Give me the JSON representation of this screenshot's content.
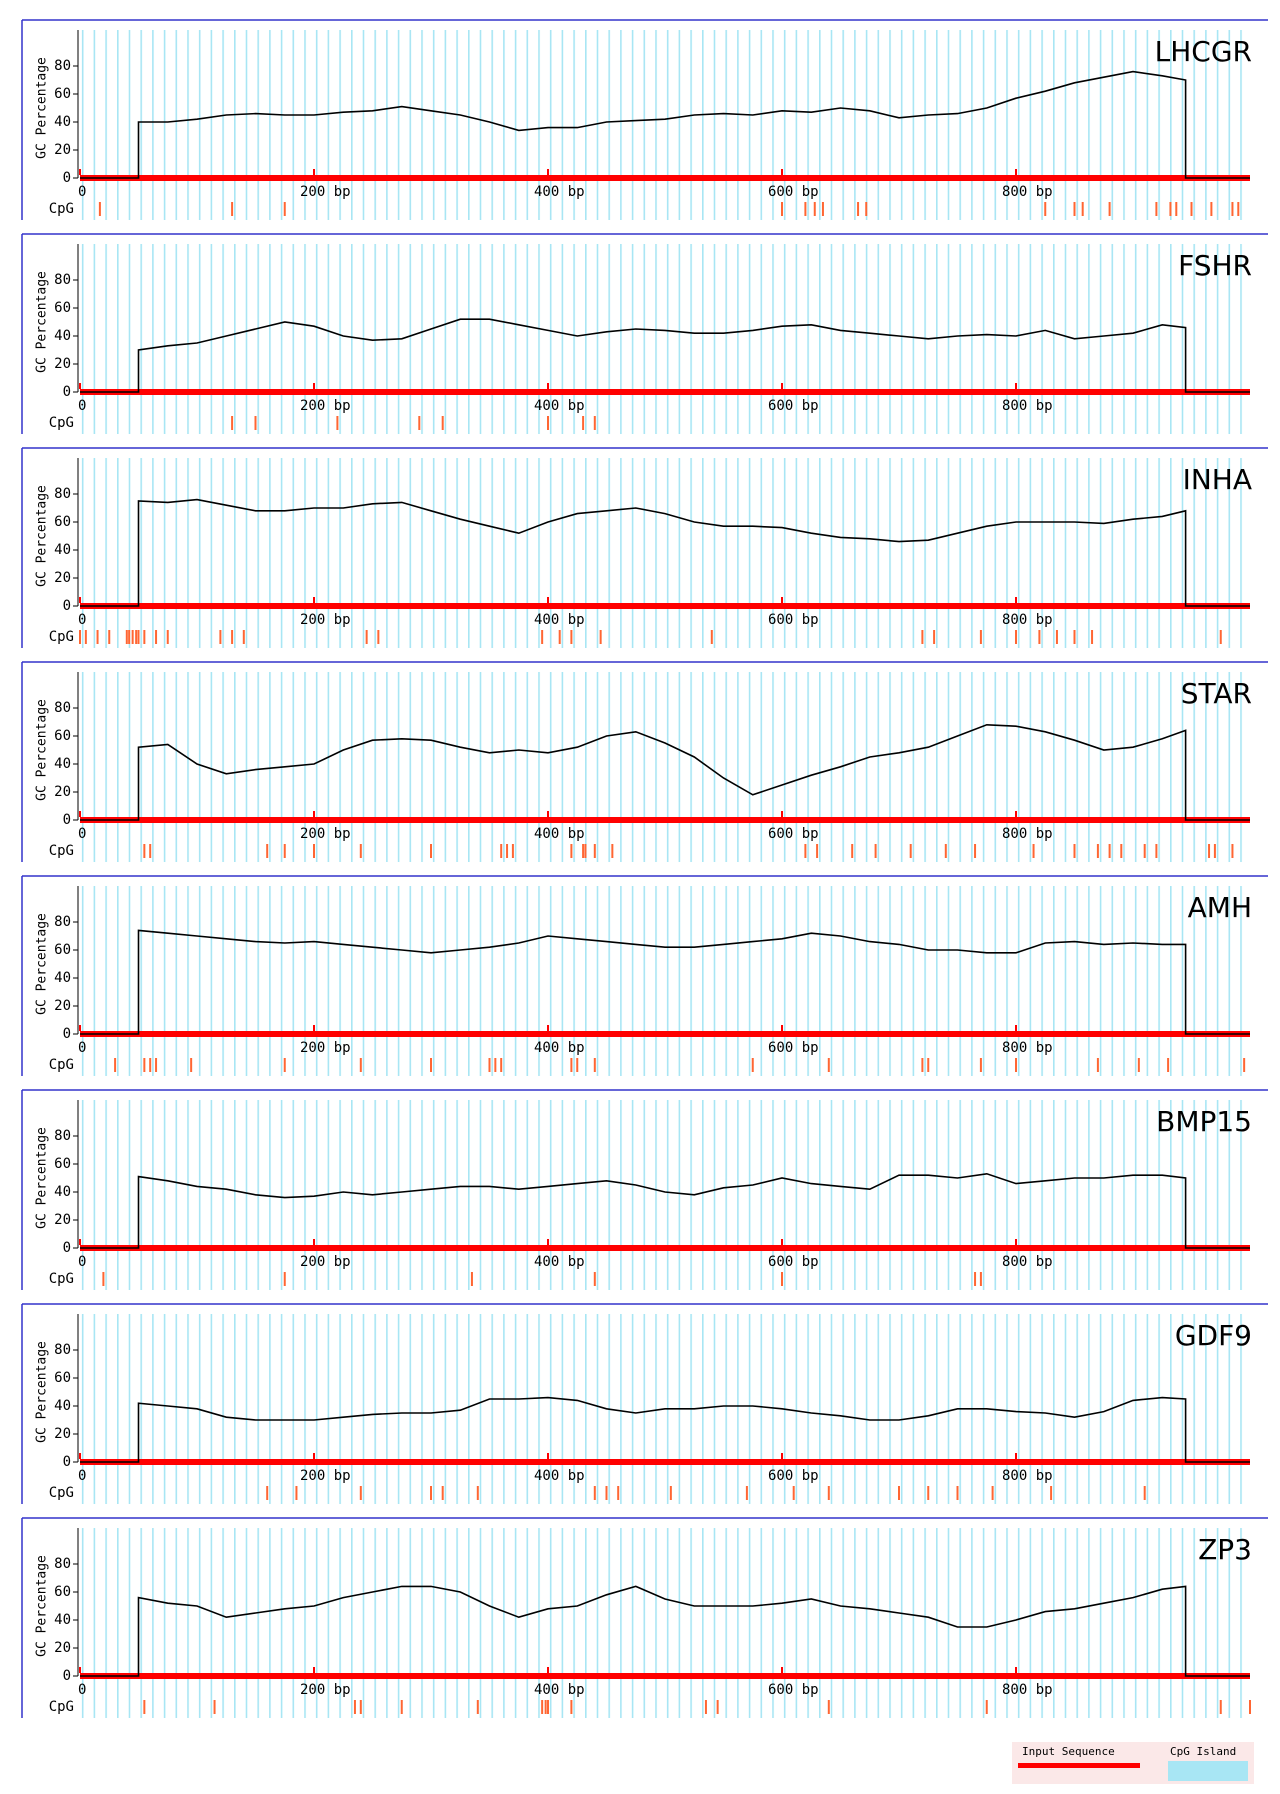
{
  "chart_data": [
    {
      "type": "line",
      "title": "LHCGR",
      "ylabel": "GC Percentage",
      "cpg_label": "CpG",
      "x": [
        0,
        50,
        50,
        75,
        100,
        125,
        150,
        175,
        200,
        225,
        250,
        275,
        300,
        325,
        350,
        375,
        400,
        425,
        450,
        475,
        500,
        525,
        550,
        575,
        600,
        625,
        650,
        675,
        700,
        725,
        750,
        775,
        800,
        825,
        850,
        875,
        900,
        925,
        945,
        945,
        1000
      ],
      "values": [
        0,
        0,
        40,
        40,
        42,
        45,
        46,
        45,
        45,
        47,
        48,
        51,
        48,
        45,
        40,
        34,
        36,
        36,
        40,
        41,
        42,
        45,
        46,
        45,
        48,
        47,
        50,
        48,
        43,
        45,
        46,
        50,
        57,
        62,
        68,
        72,
        76,
        73,
        70,
        0,
        0
      ],
      "cpg": [
        17,
        130,
        175,
        600,
        620,
        628,
        635,
        665,
        672,
        825,
        850,
        857,
        880,
        920,
        932,
        937,
        950,
        967,
        985,
        990
      ],
      "color": "#000000",
      "xlim": [
        0,
        1000
      ],
      "ylim": [
        0,
        100
      ],
      "yticks": [
        0,
        20,
        40,
        60,
        80
      ],
      "xticks": [
        0,
        {
          "value": 200,
          "label": "200  bp"
        },
        {
          "value": 400,
          "label": "400  bp"
        },
        {
          "value": 600,
          "label": "600  bp"
        },
        {
          "value": 800,
          "label": "800  bp"
        }
      ]
    },
    {
      "type": "line",
      "title": "FSHR",
      "ylabel": "GC Percentage",
      "cpg_label": "CpG",
      "x": [
        0,
        50,
        50,
        75,
        100,
        125,
        150,
        175,
        200,
        225,
        250,
        275,
        300,
        325,
        350,
        375,
        400,
        425,
        450,
        475,
        500,
        525,
        550,
        575,
        600,
        625,
        650,
        675,
        700,
        725,
        750,
        775,
        800,
        825,
        850,
        875,
        900,
        925,
        945,
        945,
        1000
      ],
      "values": [
        0,
        0,
        30,
        33,
        35,
        40,
        45,
        50,
        47,
        40,
        37,
        38,
        45,
        52,
        52,
        48,
        44,
        40,
        43,
        45,
        44,
        42,
        42,
        44,
        47,
        48,
        44,
        42,
        40,
        38,
        40,
        41,
        40,
        44,
        38,
        40,
        42,
        48,
        46,
        0,
        0
      ],
      "cpg": [
        130,
        150,
        220,
        290,
        310,
        400,
        430,
        440
      ],
      "color": "#000000",
      "xlim": [
        0,
        1000
      ],
      "ylim": [
        0,
        100
      ],
      "yticks": [
        0,
        20,
        40,
        60,
        80
      ],
      "xticks": [
        0,
        {
          "value": 200,
          "label": "200  bp"
        },
        {
          "value": 400,
          "label": "400  bp"
        },
        {
          "value": 600,
          "label": "600  bp"
        },
        {
          "value": 800,
          "label": "800  bp"
        }
      ]
    },
    {
      "type": "line",
      "title": "INHA",
      "ylabel": "GC Percentage",
      "cpg_label": "CpG",
      "x": [
        0,
        50,
        50,
        75,
        100,
        125,
        150,
        175,
        200,
        225,
        250,
        275,
        300,
        325,
        350,
        375,
        400,
        425,
        450,
        475,
        500,
        525,
        550,
        575,
        600,
        625,
        650,
        675,
        700,
        725,
        750,
        775,
        800,
        825,
        850,
        875,
        900,
        925,
        945,
        945,
        1000
      ],
      "values": [
        0,
        0,
        75,
        74,
        76,
        72,
        68,
        68,
        70,
        70,
        73,
        74,
        68,
        62,
        57,
        52,
        60,
        66,
        68,
        70,
        66,
        60,
        57,
        57,
        56,
        52,
        49,
        48,
        46,
        47,
        52,
        57,
        60,
        60,
        60,
        59,
        62,
        64,
        68,
        0,
        0
      ],
      "cpg": [
        0,
        5,
        15,
        25,
        40,
        42,
        45,
        48,
        50,
        55,
        65,
        75,
        120,
        130,
        140,
        245,
        255,
        395,
        410,
        420,
        445,
        540,
        720,
        730,
        770,
        800,
        820,
        835,
        850,
        865,
        975
      ],
      "color": "#000000",
      "xlim": [
        0,
        1000
      ],
      "ylim": [
        0,
        100
      ],
      "yticks": [
        0,
        20,
        40,
        60,
        80
      ],
      "xticks": [
        0,
        {
          "value": 200,
          "label": "200  bp"
        },
        {
          "value": 400,
          "label": "400  bp"
        },
        {
          "value": 600,
          "label": "600  bp"
        },
        {
          "value": 800,
          "label": "800  bp"
        }
      ]
    },
    {
      "type": "line",
      "title": "STAR",
      "ylabel": "GC Percentage",
      "cpg_label": "CpG",
      "x": [
        0,
        50,
        50,
        75,
        100,
        125,
        150,
        175,
        200,
        225,
        250,
        275,
        300,
        325,
        350,
        375,
        400,
        425,
        450,
        475,
        500,
        525,
        550,
        575,
        600,
        625,
        650,
        675,
        700,
        725,
        750,
        775,
        800,
        825,
        850,
        875,
        900,
        925,
        945,
        945,
        1000
      ],
      "values": [
        0,
        0,
        52,
        54,
        40,
        33,
        36,
        38,
        40,
        50,
        57,
        58,
        57,
        52,
        48,
        50,
        48,
        52,
        60,
        63,
        55,
        45,
        30,
        18,
        25,
        32,
        38,
        45,
        48,
        52,
        60,
        68,
        67,
        63,
        57,
        50,
        52,
        58,
        64,
        0,
        0
      ],
      "cpg": [
        55,
        60,
        160,
        175,
        200,
        240,
        300,
        360,
        365,
        370,
        420,
        430,
        432,
        440,
        455,
        620,
        630,
        660,
        680,
        710,
        740,
        765,
        815,
        850,
        870,
        880,
        890,
        910,
        920,
        965,
        970,
        985
      ],
      "color": "#000000",
      "xlim": [
        0,
        1000
      ],
      "ylim": [
        0,
        100
      ],
      "yticks": [
        0,
        20,
        40,
        60,
        80
      ],
      "xticks": [
        0,
        {
          "value": 200,
          "label": "200  bp"
        },
        {
          "value": 400,
          "label": "400  bp"
        },
        {
          "value": 600,
          "label": "600  bp"
        },
        {
          "value": 800,
          "label": "800  bp"
        }
      ]
    },
    {
      "type": "line",
      "title": "AMH",
      "ylabel": "GC Percentage",
      "cpg_label": "CpG",
      "x": [
        0,
        50,
        50,
        75,
        100,
        125,
        150,
        175,
        200,
        225,
        250,
        275,
        300,
        325,
        350,
        375,
        400,
        425,
        450,
        475,
        500,
        525,
        550,
        575,
        600,
        625,
        650,
        675,
        700,
        725,
        750,
        775,
        800,
        825,
        850,
        875,
        900,
        925,
        945,
        945,
        1000
      ],
      "values": [
        0,
        0,
        74,
        72,
        70,
        68,
        66,
        65,
        66,
        64,
        62,
        60,
        58,
        60,
        62,
        65,
        70,
        68,
        66,
        64,
        62,
        62,
        64,
        66,
        68,
        72,
        70,
        66,
        64,
        60,
        60,
        58,
        58,
        65,
        66,
        64,
        65,
        64,
        64,
        0,
        0
      ],
      "cpg": [
        30,
        55,
        60,
        65,
        95,
        175,
        240,
        300,
        350,
        355,
        360,
        420,
        425,
        440,
        575,
        640,
        720,
        725,
        770,
        800,
        870,
        905,
        930,
        995
      ],
      "color": "#000000",
      "xlim": [
        0,
        1000
      ],
      "ylim": [
        0,
        100
      ],
      "yticks": [
        0,
        20,
        40,
        60,
        80
      ],
      "xticks": [
        0,
        {
          "value": 200,
          "label": "200  bp"
        },
        {
          "value": 400,
          "label": "400  bp"
        },
        {
          "value": 600,
          "label": "600  bp"
        },
        {
          "value": 800,
          "label": "800  bp"
        }
      ]
    },
    {
      "type": "line",
      "title": "BMP15",
      "ylabel": "GC Percentage",
      "cpg_label": "CpG",
      "x": [
        0,
        50,
        50,
        75,
        100,
        125,
        150,
        175,
        200,
        225,
        250,
        275,
        300,
        325,
        350,
        375,
        400,
        425,
        450,
        475,
        500,
        525,
        550,
        575,
        600,
        625,
        650,
        675,
        700,
        725,
        750,
        775,
        800,
        825,
        850,
        875,
        900,
        925,
        945,
        945,
        1000
      ],
      "values": [
        0,
        0,
        51,
        48,
        44,
        42,
        38,
        36,
        37,
        40,
        38,
        40,
        42,
        44,
        44,
        42,
        44,
        46,
        48,
        45,
        40,
        38,
        43,
        45,
        50,
        46,
        44,
        42,
        52,
        52,
        50,
        53,
        46,
        48,
        50,
        50,
        52,
        52,
        50,
        0,
        0
      ],
      "cpg": [
        20,
        175,
        335,
        440,
        600,
        765,
        770
      ],
      "color": "#000000",
      "xlim": [
        0,
        1000
      ],
      "ylim": [
        0,
        100
      ],
      "yticks": [
        0,
        20,
        40,
        60,
        80
      ],
      "xticks": [
        0,
        {
          "value": 200,
          "label": "200  bp"
        },
        {
          "value": 400,
          "label": "400  bp"
        },
        {
          "value": 600,
          "label": "600  bp"
        },
        {
          "value": 800,
          "label": "800  bp"
        }
      ]
    },
    {
      "type": "line",
      "title": "GDF9",
      "ylabel": "GC Percentage",
      "cpg_label": "CpG",
      "x": [
        0,
        50,
        50,
        75,
        100,
        125,
        150,
        175,
        200,
        225,
        250,
        275,
        300,
        325,
        350,
        375,
        400,
        425,
        450,
        475,
        500,
        525,
        550,
        575,
        600,
        625,
        650,
        675,
        700,
        725,
        750,
        775,
        800,
        825,
        850,
        875,
        900,
        925,
        945,
        945,
        1000
      ],
      "values": [
        0,
        0,
        42,
        40,
        38,
        32,
        30,
        30,
        30,
        32,
        34,
        35,
        35,
        37,
        45,
        45,
        46,
        44,
        38,
        35,
        38,
        38,
        40,
        40,
        38,
        35,
        33,
        30,
        30,
        33,
        38,
        38,
        36,
        35,
        32,
        36,
        44,
        46,
        45,
        0,
        0
      ],
      "cpg": [
        160,
        185,
        240,
        300,
        310,
        340,
        440,
        450,
        460,
        505,
        570,
        610,
        640,
        700,
        725,
        750,
        780,
        830,
        910
      ],
      "color": "#000000",
      "xlim": [
        0,
        1000
      ],
      "ylim": [
        0,
        100
      ],
      "yticks": [
        0,
        20,
        40,
        60,
        80
      ],
      "xticks": [
        0,
        {
          "value": 200,
          "label": "200  bp"
        },
        {
          "value": 400,
          "label": "400  bp"
        },
        {
          "value": 600,
          "label": "600  bp"
        },
        {
          "value": 800,
          "label": "800  bp"
        }
      ]
    },
    {
      "type": "line",
      "title": "ZP3",
      "ylabel": "GC Percentage",
      "cpg_label": "CpG",
      "x": [
        0,
        50,
        50,
        75,
        100,
        125,
        150,
        175,
        200,
        225,
        250,
        275,
        300,
        325,
        350,
        375,
        400,
        425,
        450,
        475,
        500,
        525,
        550,
        575,
        600,
        625,
        650,
        675,
        700,
        725,
        750,
        775,
        800,
        825,
        850,
        875,
        900,
        925,
        945,
        945,
        1000
      ],
      "values": [
        0,
        0,
        56,
        52,
        50,
        42,
        45,
        48,
        50,
        56,
        60,
        64,
        64,
        60,
        50,
        42,
        48,
        50,
        58,
        64,
        55,
        50,
        50,
        50,
        52,
        55,
        50,
        48,
        45,
        42,
        35,
        35,
        40,
        46,
        48,
        52,
        56,
        62,
        64,
        0,
        0
      ],
      "cpg": [
        55,
        115,
        235,
        240,
        275,
        340,
        395,
        398,
        400,
        420,
        535,
        545,
        640,
        775,
        975,
        1000
      ],
      "color": "#000000",
      "xlim": [
        0,
        1000
      ],
      "ylim": [
        0,
        100
      ],
      "yticks": [
        0,
        20,
        40,
        60,
        80
      ],
      "xticks": [
        0,
        {
          "value": 200,
          "label": "200  bp"
        },
        {
          "value": 400,
          "label": "400  bp"
        },
        {
          "value": 600,
          "label": "600  bp"
        },
        {
          "value": 800,
          "label": "800  bp"
        }
      ]
    }
  ],
  "legend": {
    "items": [
      {
        "name": "Input Sequence",
        "color": "#ff0000"
      },
      {
        "name": "CpG Island",
        "color": "#a8e6f4"
      }
    ]
  }
}
